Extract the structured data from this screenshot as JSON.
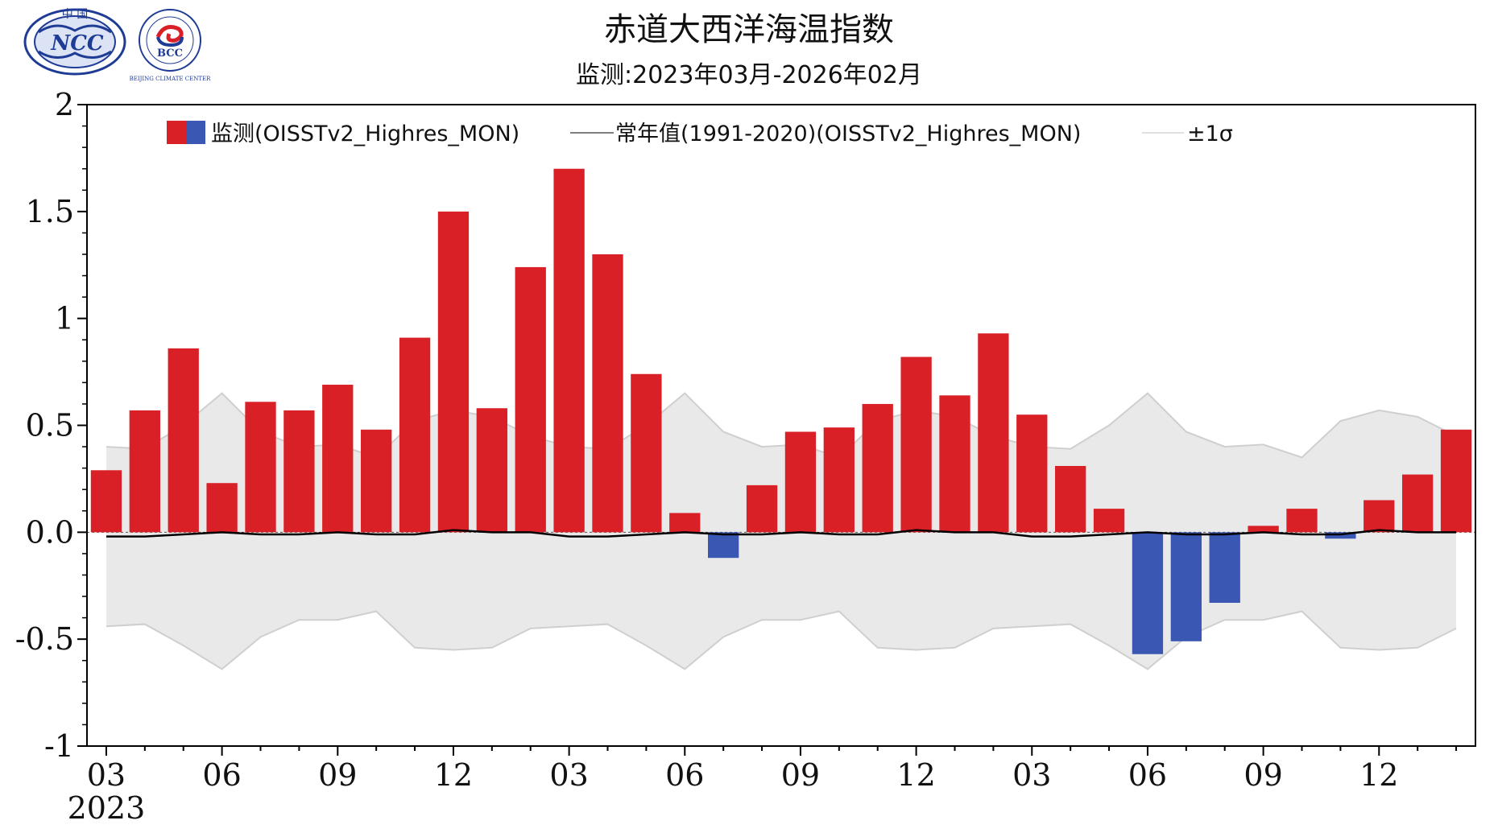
{
  "chart_data": {
    "type": "bar",
    "title": "赤道大西洋海温指数",
    "subtitle": "监测:2023年03月-2026年02月",
    "ylim": [
      -1,
      2
    ],
    "y_ticks": [
      "2",
      "1.5",
      "1",
      "0.5",
      "0.0",
      "-0.5",
      "-1"
    ],
    "y_tick_values": [
      2,
      1.5,
      1,
      0.5,
      0,
      -0.5,
      -1
    ],
    "x_tick_labels": [
      "03",
      "06",
      "09",
      "12",
      "03",
      "06",
      "09",
      "12",
      "03",
      "06",
      "09",
      "12"
    ],
    "x_tick_indices": [
      0,
      3,
      6,
      9,
      12,
      15,
      18,
      21,
      24,
      27,
      30,
      33
    ],
    "start_year_label": "2023",
    "series": [
      {
        "name": "监测(OISSTv2_Highres_MON)",
        "positive_color": "#d92027",
        "negative_color": "#3b57b4",
        "values": [
          0.29,
          0.57,
          0.86,
          0.23,
          0.61,
          0.57,
          0.69,
          0.48,
          0.91,
          1.5,
          0.58,
          1.24,
          1.7,
          1.3,
          0.74,
          0.09,
          -0.12,
          0.22,
          0.47,
          0.49,
          0.6,
          0.82,
          0.64,
          0.93,
          0.55,
          0.31,
          0.11,
          -0.57,
          -0.51,
          -0.33,
          0.03,
          0.11,
          -0.03,
          0.15,
          0.27,
          0.48
        ]
      },
      {
        "name": "常年值(1991-2020)(OISSTv2_Highres_MON)",
        "color": "#000000",
        "values": [
          -0.02,
          -0.02,
          -0.01,
          0.0,
          -0.01,
          -0.01,
          0.0,
          -0.01,
          -0.01,
          0.01,
          0.0,
          0.0,
          -0.02,
          -0.02,
          -0.01,
          0.0,
          -0.01,
          -0.01,
          0.0,
          -0.01,
          -0.01,
          0.01,
          0.0,
          0.0,
          -0.02,
          -0.02,
          -0.01,
          0.0,
          -0.01,
          -0.01,
          0.0,
          -0.01,
          -0.01,
          0.01,
          0.0,
          0.0
        ]
      },
      {
        "name": "±1σ",
        "color": "#e8e8e8",
        "upper": [
          0.4,
          0.39,
          0.5,
          0.65,
          0.47,
          0.4,
          0.41,
          0.35,
          0.52,
          0.57,
          0.54,
          0.45,
          0.4,
          0.39,
          0.5,
          0.65,
          0.47,
          0.4,
          0.41,
          0.35,
          0.52,
          0.57,
          0.54,
          0.45,
          0.4,
          0.39,
          0.5,
          0.65,
          0.47,
          0.4,
          0.41,
          0.35,
          0.52,
          0.57,
          0.54,
          0.45
        ],
        "lower": [
          -0.44,
          -0.43,
          -0.53,
          -0.64,
          -0.49,
          -0.41,
          -0.41,
          -0.37,
          -0.54,
          -0.55,
          -0.54,
          -0.45,
          -0.44,
          -0.43,
          -0.53,
          -0.64,
          -0.49,
          -0.41,
          -0.41,
          -0.37,
          -0.54,
          -0.55,
          -0.54,
          -0.45,
          -0.44,
          -0.43,
          -0.53,
          -0.64,
          -0.49,
          -0.41,
          -0.41,
          -0.37,
          -0.54,
          -0.55,
          -0.54,
          -0.45
        ]
      }
    ]
  },
  "logos": {
    "ncc_text": "NCC",
    "ncc_top_text": "中 国",
    "bcc_text": "BCC",
    "bcc_ring_text": "BEIJING CLIMATE CENTER"
  }
}
